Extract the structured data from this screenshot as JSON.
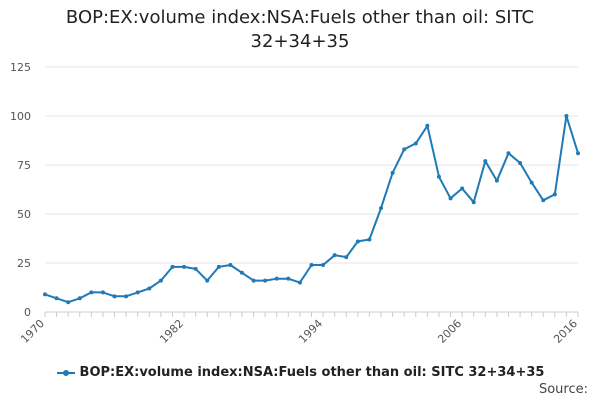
{
  "chart_data": {
    "type": "line",
    "title": "BOP:EX:volume index:NSA:Fuels other than oil: SITC 32+34+35",
    "title_line1": "BOP:EX:volume index:NSA:Fuels other than oil: SITC",
    "title_line2": "32+34+35",
    "xlabel": "",
    "ylabel": "",
    "xlim": [
      1970,
      2016
    ],
    "ylim": [
      0,
      125
    ],
    "x_ticks": [
      "1970",
      "1982",
      "1994",
      "2006",
      "2016"
    ],
    "y_ticks": [
      "0",
      "25",
      "50",
      "75",
      "100",
      "125"
    ],
    "grid": true,
    "legend_position": "bottom",
    "series": [
      {
        "name": "BOP:EX:volume index:NSA:Fuels other than oil: SITC 32+34+35",
        "color": "#1f7ab5",
        "x": [
          1970,
          1971,
          1972,
          1973,
          1974,
          1975,
          1976,
          1977,
          1978,
          1979,
          1980,
          1981,
          1982,
          1983,
          1984,
          1985,
          1986,
          1987,
          1988,
          1989,
          1990,
          1991,
          1992,
          1993,
          1994,
          1995,
          1996,
          1997,
          1998,
          1999,
          2000,
          2001,
          2002,
          2003,
          2004,
          2005,
          2006,
          2007,
          2008,
          2009,
          2010,
          2011,
          2012,
          2013,
          2014,
          2015,
          2016
        ],
        "values": [
          9,
          7,
          5,
          7,
          10,
          10,
          8,
          8,
          10,
          12,
          16,
          23,
          23,
          22,
          16,
          23,
          24,
          20,
          16,
          16,
          17,
          17,
          15,
          24,
          24,
          29,
          28,
          36,
          37,
          53,
          71,
          83,
          86,
          95,
          69,
          58,
          63,
          56,
          77,
          67,
          81,
          76,
          66,
          57,
          60,
          100,
          81
        ]
      }
    ],
    "source_label": "Source:"
  }
}
